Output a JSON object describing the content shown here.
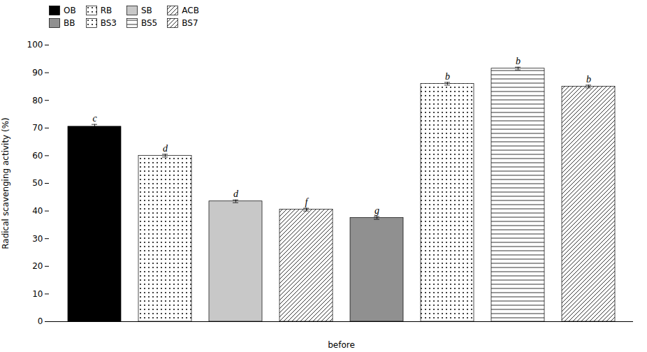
{
  "chart_data": {
    "type": "bar",
    "categories": [
      "OB",
      "RB",
      "SB",
      "ACB",
      "BB",
      "BS3",
      "BS5",
      "BS7"
    ],
    "values": [
      70.5,
      60.0,
      43.5,
      40.5,
      37.5,
      86.0,
      91.5,
      85.0
    ],
    "errors": [
      0.8,
      0.5,
      0.5,
      0.5,
      0.5,
      0.5,
      0.5,
      0.5
    ],
    "annotations": [
      "c",
      "d",
      "d",
      "f",
      "g",
      "b",
      "b",
      "b"
    ],
    "colors": [
      "black",
      "white",
      "#c8c8c8",
      "white",
      "#909090",
      "white",
      "white",
      "white"
    ],
    "ylabel": "Radical scavenging activity (%)",
    "xlabel": "before",
    "ylim": [
      0,
      100
    ],
    "yticks": [
      0,
      10,
      20,
      30,
      40,
      50,
      60,
      70,
      80,
      90,
      100
    ],
    "grid": false,
    "legend": "top-left",
    "tick_labels": "y"
  }
}
